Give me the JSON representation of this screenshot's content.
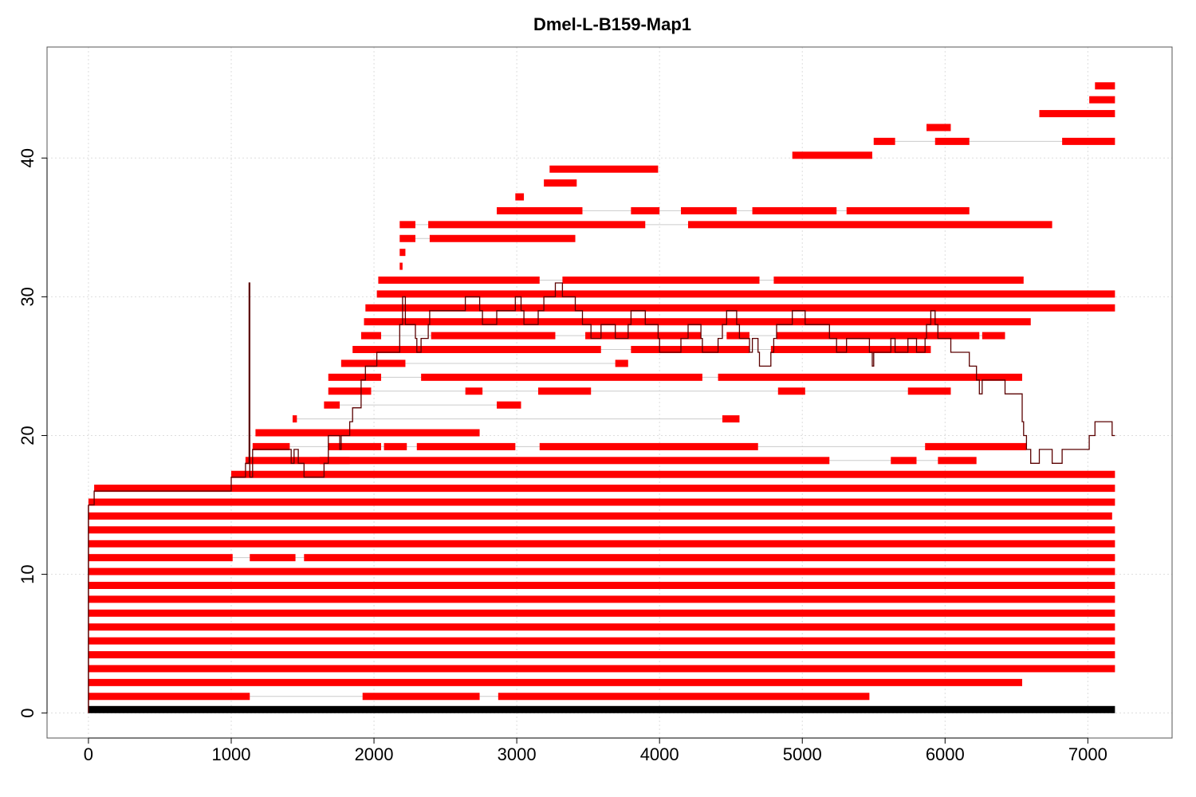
{
  "chart_data": {
    "type": "alignment-map",
    "title": "Dmel-L-B159-Map1",
    "xlabel": "",
    "ylabel": "",
    "xlim": [
      -290,
      7590
    ],
    "ylim": [
      -1.8,
      48.0
    ],
    "x_ticks": [
      0,
      1000,
      2000,
      3000,
      4000,
      5000,
      6000,
      7000
    ],
    "y_ticks": [
      0,
      10,
      20,
      30,
      40
    ],
    "grid": true,
    "colors": {
      "reads": "#ff0000",
      "reference": "#000000",
      "coverage": "#5a0000",
      "connector": "#cccccc",
      "grid": "#dddddd"
    },
    "reference": {
      "start": 0,
      "end": 7190,
      "y": 0.25
    },
    "reads": [
      {
        "y": 1.2,
        "segments": [
          [
            0,
            1130
          ],
          [
            1920,
            2740
          ],
          [
            2870,
            5470
          ]
        ]
      },
      {
        "y": 2.2,
        "segments": [
          [
            0,
            6540
          ]
        ]
      },
      {
        "y": 3.2,
        "segments": [
          [
            0,
            7190
          ]
        ]
      },
      {
        "y": 4.2,
        "segments": [
          [
            0,
            7190
          ]
        ]
      },
      {
        "y": 5.2,
        "segments": [
          [
            0,
            7190
          ]
        ]
      },
      {
        "y": 6.2,
        "segments": [
          [
            0,
            7190
          ]
        ]
      },
      {
        "y": 7.2,
        "segments": [
          [
            0,
            7190
          ]
        ]
      },
      {
        "y": 8.2,
        "segments": [
          [
            0,
            7190
          ]
        ]
      },
      {
        "y": 9.2,
        "segments": [
          [
            0,
            7190
          ]
        ]
      },
      {
        "y": 10.2,
        "segments": [
          [
            0,
            7190
          ]
        ]
      },
      {
        "y": 11.2,
        "segments": [
          [
            0,
            1010
          ],
          [
            1130,
            1450
          ],
          [
            1510,
            7190
          ]
        ]
      },
      {
        "y": 12.2,
        "segments": [
          [
            0,
            7190
          ]
        ]
      },
      {
        "y": 13.2,
        "segments": [
          [
            0,
            7190
          ]
        ]
      },
      {
        "y": 14.2,
        "segments": [
          [
            0,
            7170
          ]
        ]
      },
      {
        "y": 15.2,
        "segments": [
          [
            0,
            7190
          ]
        ]
      },
      {
        "y": 16.2,
        "segments": [
          [
            40,
            7190
          ]
        ]
      },
      {
        "y": 17.2,
        "segments": [
          [
            1000,
            7190
          ]
        ]
      },
      {
        "y": 18.2,
        "segments": [
          [
            1100,
            5190
          ],
          [
            1620,
            1830
          ],
          [
            5620,
            5800
          ],
          [
            5950,
            6220
          ]
        ]
      },
      {
        "y": 19.2,
        "segments": [
          [
            1150,
            1410
          ],
          [
            1680,
            2050
          ],
          [
            2070,
            2230
          ],
          [
            2300,
            2990
          ],
          [
            3160,
            4690
          ],
          [
            5860,
            6570
          ]
        ]
      },
      {
        "y": 20.2,
        "segments": [
          [
            1170,
            2740
          ]
        ]
      },
      {
        "y": 21.2,
        "segments": [
          [
            1430,
            1460
          ],
          [
            4440,
            4560
          ]
        ]
      },
      {
        "y": 22.2,
        "segments": [
          [
            1650,
            1760
          ],
          [
            2860,
            3030
          ]
        ]
      },
      {
        "y": 23.2,
        "segments": [
          [
            1680,
            1980
          ],
          [
            2640,
            2760
          ],
          [
            3150,
            3520
          ],
          [
            4830,
            5020
          ],
          [
            5740,
            6040
          ]
        ]
      },
      {
        "y": 24.2,
        "segments": [
          [
            1680,
            2050
          ],
          [
            2330,
            4300
          ],
          [
            4410,
            6540
          ]
        ]
      },
      {
        "y": 25.2,
        "segments": [
          [
            1770,
            2220
          ],
          [
            3690,
            3780
          ]
        ]
      },
      {
        "y": 26.2,
        "segments": [
          [
            1850,
            3590
          ],
          [
            3800,
            4630
          ],
          [
            4780,
            5900
          ]
        ]
      },
      {
        "y": 27.2,
        "segments": [
          [
            1910,
            2050
          ],
          [
            2400,
            3270
          ],
          [
            3480,
            4290
          ],
          [
            4470,
            4630
          ],
          [
            4820,
            6240
          ],
          [
            6260,
            6420
          ]
        ]
      },
      {
        "y": 28.2,
        "segments": [
          [
            1930,
            6600
          ]
        ]
      },
      {
        "y": 29.2,
        "segments": [
          [
            1940,
            7190
          ]
        ]
      },
      {
        "y": 30.2,
        "segments": [
          [
            2020,
            7190
          ]
        ]
      },
      {
        "y": 31.2,
        "segments": [
          [
            2030,
            3160
          ],
          [
            3320,
            4700
          ],
          [
            4800,
            6550
          ]
        ]
      },
      {
        "y": 32.2,
        "segments": [
          [
            2180,
            2200
          ]
        ]
      },
      {
        "y": 33.2,
        "segments": [
          [
            2180,
            2220
          ]
        ]
      },
      {
        "y": 34.2,
        "segments": [
          [
            2180,
            2290
          ],
          [
            2390,
            3410
          ]
        ]
      },
      {
        "y": 35.2,
        "segments": [
          [
            2180,
            2290
          ],
          [
            2380,
            3900
          ],
          [
            4200,
            6750
          ]
        ]
      },
      {
        "y": 36.2,
        "segments": [
          [
            2860,
            3460
          ],
          [
            3800,
            4000
          ],
          [
            4150,
            4540
          ],
          [
            4650,
            5240
          ],
          [
            5310,
            6170
          ]
        ]
      },
      {
        "y": 37.2,
        "segments": [
          [
            2990,
            3050
          ]
        ]
      },
      {
        "y": 38.2,
        "segments": [
          [
            3190,
            3420
          ]
        ]
      },
      {
        "y": 39.2,
        "segments": [
          [
            3230,
            3990
          ]
        ]
      },
      {
        "y": 40.2,
        "segments": [
          [
            4930,
            5490
          ]
        ]
      },
      {
        "y": 41.2,
        "segments": [
          [
            5500,
            5650
          ],
          [
            5930,
            6170
          ],
          [
            6820,
            7190
          ]
        ]
      },
      {
        "y": 42.2,
        "segments": [
          [
            5870,
            6040
          ]
        ]
      },
      {
        "y": 43.2,
        "segments": [
          [
            6660,
            7190
          ]
        ]
      },
      {
        "y": 44.2,
        "segments": [
          [
            7010,
            7190
          ]
        ]
      },
      {
        "y": 45.2,
        "segments": [
          [
            7050,
            7190
          ]
        ]
      }
    ],
    "coverage": {
      "x": [
        0,
        40,
        40,
        1000,
        1000,
        1100,
        1100,
        1125,
        1125,
        1130,
        1130,
        1150,
        1150,
        1420,
        1420,
        1440,
        1440,
        1470,
        1470,
        1510,
        1510,
        1650,
        1650,
        1680,
        1680,
        1760,
        1760,
        1770,
        1770,
        1830,
        1830,
        1850,
        1850,
        1910,
        1910,
        1940,
        1940,
        2020,
        2020,
        2180,
        2180,
        2200,
        2200,
        2220,
        2220,
        2290,
        2290,
        2300,
        2300,
        2330,
        2330,
        2380,
        2380,
        2390,
        2390,
        2640,
        2640,
        2740,
        2740,
        2760,
        2760,
        2860,
        2860,
        2990,
        2990,
        3030,
        3030,
        3050,
        3050,
        3150,
        3150,
        3190,
        3190,
        3270,
        3270,
        3320,
        3320,
        3410,
        3410,
        3460,
        3460,
        3520,
        3520,
        3590,
        3590,
        3690,
        3690,
        3780,
        3780,
        3800,
        3800,
        3900,
        3900,
        3990,
        3990,
        4000,
        4000,
        4150,
        4150,
        4200,
        4200,
        4290,
        4290,
        4300,
        4300,
        4410,
        4410,
        4440,
        4440,
        4470,
        4470,
        4540,
        4540,
        4560,
        4560,
        4630,
        4630,
        4650,
        4650,
        4690,
        4690,
        4700,
        4700,
        4780,
        4780,
        4800,
        4800,
        4820,
        4820,
        4930,
        4930,
        5020,
        5020,
        5190,
        5190,
        5240,
        5240,
        5310,
        5310,
        5470,
        5470,
        5490,
        5490,
        5500,
        5500,
        5620,
        5620,
        5650,
        5650,
        5740,
        5740,
        5800,
        5800,
        5860,
        5860,
        5870,
        5870,
        5900,
        5900,
        5930,
        5930,
        5950,
        5950,
        6040,
        6040,
        6170,
        6170,
        6220,
        6220,
        6240,
        6240,
        6260,
        6260,
        6420,
        6420,
        6540,
        6540,
        6550,
        6550,
        6570,
        6570,
        6600,
        6600,
        6660,
        6660,
        6750,
        6750,
        6820,
        6820,
        7010,
        7010,
        7050,
        7050,
        7170,
        7170,
        7190
      ],
      "y": [
        15,
        15,
        16,
        16,
        17,
        17,
        18,
        18,
        31,
        31,
        17,
        17,
        19,
        19,
        18,
        18,
        19,
        19,
        18,
        18,
        17,
        17,
        18,
        18,
        20,
        20,
        19,
        19,
        20,
        20,
        21,
        21,
        22,
        22,
        24,
        24,
        25,
        25,
        26,
        26,
        28,
        28,
        30,
        30,
        28,
        28,
        27,
        27,
        26,
        26,
        27,
        27,
        28,
        28,
        29,
        29,
        30,
        30,
        29,
        29,
        28,
        28,
        29,
        29,
        30,
        30,
        29,
        29,
        28,
        28,
        29,
        29,
        30,
        30,
        31,
        31,
        30,
        30,
        29,
        29,
        28,
        28,
        27,
        27,
        28,
        28,
        27,
        27,
        28,
        28,
        29,
        29,
        28,
        28,
        27,
        27,
        26,
        26,
        27,
        27,
        28,
        28,
        27,
        27,
        26,
        26,
        27,
        27,
        28,
        28,
        29,
        29,
        28,
        28,
        27,
        27,
        26,
        26,
        27,
        27,
        26,
        26,
        25,
        25,
        26,
        26,
        27,
        27,
        28,
        28,
        29,
        29,
        28,
        28,
        27,
        27,
        26,
        26,
        27,
        27,
        26,
        26,
        25,
        25,
        26,
        26,
        27,
        27,
        26,
        26,
        27,
        27,
        26,
        26,
        27,
        27,
        28,
        28,
        29,
        29,
        28,
        28,
        27,
        27,
        26,
        26,
        25,
        25,
        24,
        24,
        23,
        23,
        24,
        24,
        23,
        23,
        21,
        21,
        20,
        20,
        19,
        19,
        18,
        18,
        19,
        19,
        18,
        18,
        19,
        19,
        20,
        20,
        21,
        21,
        20,
        20,
        19
      ]
    }
  }
}
